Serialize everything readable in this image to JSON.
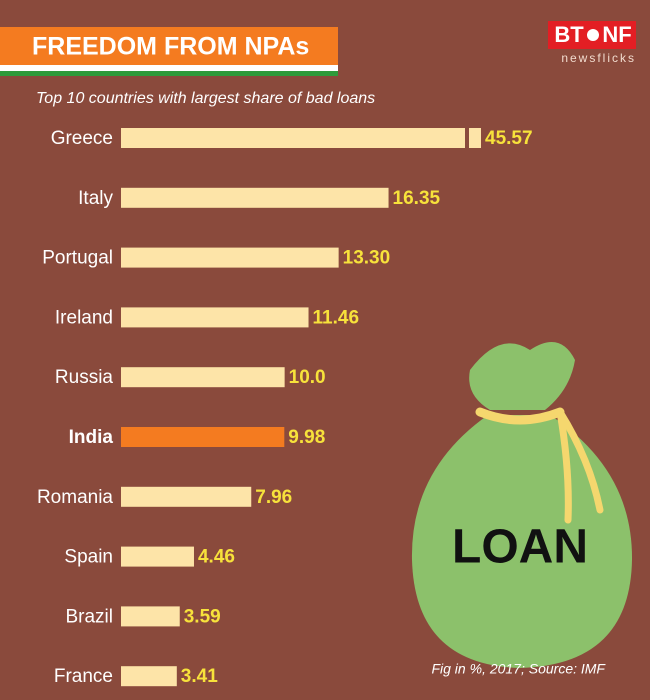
{
  "chart_data": {
    "type": "bar",
    "orientation": "horizontal",
    "title": "FREEDOM FROM NPAs",
    "subtitle": "Top 10 countries with largest share of bad loans",
    "source": "Fig in %, 2017; Source: IMF",
    "categories": [
      "Greece",
      "Italy",
      "Portugal",
      "Ireland",
      "Russia",
      "India",
      "Romania",
      "Spain",
      "Brazil",
      "France"
    ],
    "values": [
      45.57,
      16.35,
      13.3,
      11.46,
      10.0,
      9.98,
      7.96,
      4.46,
      3.59,
      3.41
    ],
    "value_labels": [
      "45.57",
      "16.35",
      "13.30",
      "11.46",
      "10.0",
      "9.98",
      "7.96",
      "4.46",
      "3.59",
      "3.41"
    ],
    "color": "#fde4a8",
    "highlight": "India",
    "highlight_color": "#f47b20",
    "xlim": [
      0,
      22
    ]
  },
  "logo": {
    "left": "BT",
    "right": "NF",
    "tagline": "newsflicks"
  },
  "illustration": {
    "label": "LOAN"
  }
}
